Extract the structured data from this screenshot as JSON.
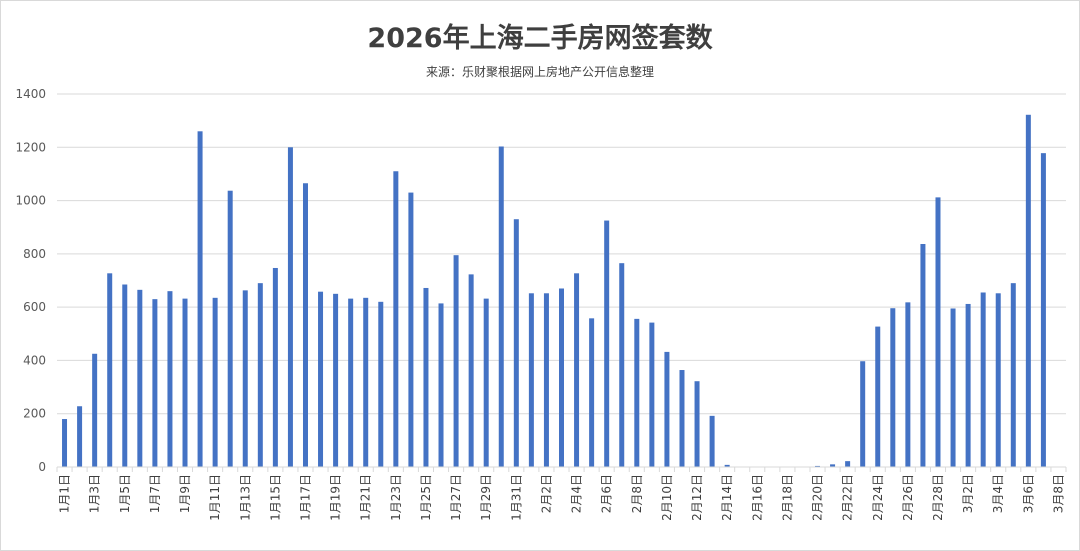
{
  "colors": {
    "bar": "#4472c4",
    "grid": "#d9d9d9",
    "text": "#595959"
  },
  "chart_data": {
    "type": "bar",
    "title": "2026年上海二手房网签套数",
    "subtitle": "来源：乐财聚根据网上房地产公开信息整理",
    "ylim": [
      0,
      1400
    ],
    "yticks": [
      0,
      200,
      400,
      600,
      800,
      1000,
      1200,
      1400
    ],
    "grid": true,
    "legend": "none",
    "categories": [
      "1月1日",
      "1月2日",
      "1月3日",
      "1月4日",
      "1月5日",
      "1月6日",
      "1月7日",
      "1月8日",
      "1月9日",
      "1月10日",
      "1月11日",
      "1月12日",
      "1月13日",
      "1月14日",
      "1月15日",
      "1月16日",
      "1月17日",
      "1月18日",
      "1月19日",
      "1月20日",
      "1月21日",
      "1月22日",
      "1月23日",
      "1月24日",
      "1月25日",
      "1月26日",
      "1月27日",
      "1月28日",
      "1月29日",
      "1月30日",
      "1月31日",
      "2月1日",
      "2月2日",
      "2月3日",
      "2月4日",
      "2月5日",
      "2月6日",
      "2月7日",
      "2月8日",
      "2月9日",
      "2月10日",
      "2月11日",
      "2月12日",
      "2月13日",
      "2月14日",
      "2月15日",
      "2月16日",
      "2月17日",
      "2月18日",
      "2月19日",
      "2月20日",
      "2月21日",
      "2月22日",
      "2月23日",
      "2月24日",
      "2月25日",
      "2月26日",
      "2月27日",
      "2月28日",
      "3月1日",
      "3月2日",
      "3月3日",
      "3月4日",
      "3月5日",
      "3月6日",
      "3月7日",
      "3月8日"
    ],
    "values": [
      180,
      228,
      425,
      727,
      685,
      665,
      630,
      660,
      632,
      1260,
      635,
      1037,
      663,
      690,
      747,
      1200,
      1065,
      658,
      650,
      632,
      635,
      620,
      1110,
      1030,
      672,
      614,
      795,
      723,
      632,
      1203,
      930,
      652,
      652,
      670,
      727,
      558,
      925,
      765,
      556,
      542,
      432,
      364,
      322,
      192,
      8,
      1,
      1,
      1,
      1,
      1,
      4,
      10,
      22,
      397,
      527,
      596,
      618,
      837,
      1012,
      595,
      612,
      655,
      652,
      690,
      1322,
      1178,
      0
    ]
  }
}
